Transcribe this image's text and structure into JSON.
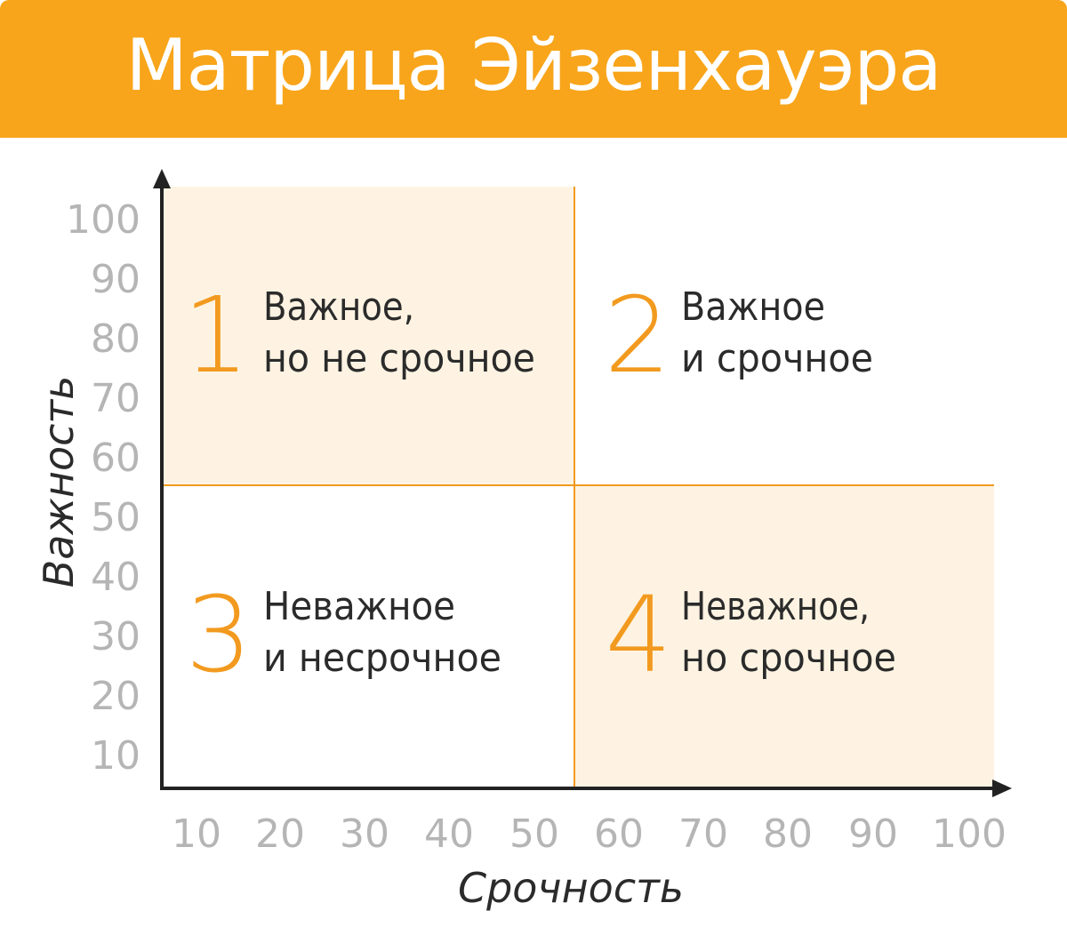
{
  "title": "Матрица Эйзенхауэра",
  "colors": {
    "accent": "#f8a51b",
    "quadrant_fill": "#fef3e2",
    "quadrant_line": "#f29a1f",
    "number": "#f29a1f",
    "tick": "#b5b5b5",
    "text": "#2b2b2b"
  },
  "axes": {
    "x_title": "Срочность",
    "y_title": "Важность",
    "x_ticks": [
      "10",
      "20",
      "30",
      "40",
      "50",
      "60",
      "70",
      "80",
      "90",
      "100"
    ],
    "y_ticks": [
      "100",
      "90",
      "80",
      "70",
      "60",
      "50",
      "40",
      "30",
      "20",
      "10"
    ]
  },
  "quadrants": [
    {
      "number": "1",
      "line1": "Важное,",
      "line2": "но не срочное",
      "highlighted": true
    },
    {
      "number": "2",
      "line1": "Важное",
      "line2": "и срочное",
      "highlighted": false
    },
    {
      "number": "3",
      "line1": "Неважное",
      "line2": "и несрочное",
      "highlighted": false
    },
    {
      "number": "4",
      "line1": "Неважное,",
      "line2": "но срочное",
      "highlighted": true
    }
  ]
}
